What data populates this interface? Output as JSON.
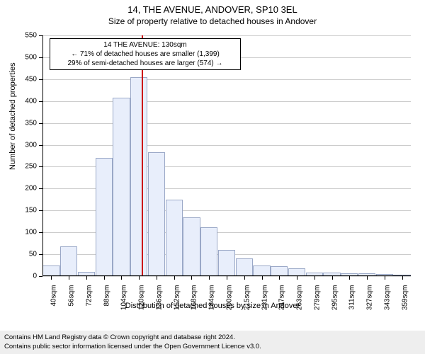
{
  "title_main": "14, THE AVENUE, ANDOVER, SP10 3EL",
  "title_sub": "Size of property relative to detached houses in Andover",
  "chart": {
    "type": "histogram",
    "y_axis_title": "Number of detached properties",
    "x_axis_title": "Distribution of detached houses by size in Andover",
    "ylim": [
      0,
      550
    ],
    "y_ticks": [
      0,
      50,
      100,
      150,
      200,
      250,
      300,
      350,
      400,
      450,
      500,
      550
    ],
    "x_ticks": [
      "40sqm",
      "56sqm",
      "72sqm",
      "88sqm",
      "104sqm",
      "120sqm",
      "136sqm",
      "152sqm",
      "168sqm",
      "184sqm",
      "200sqm",
      "215sqm",
      "231sqm",
      "247sqm",
      "263sqm",
      "279sqm",
      "295sqm",
      "311sqm",
      "327sqm",
      "343sqm",
      "359sqm"
    ],
    "bars": [
      25,
      68,
      10,
      270,
      408,
      455,
      283,
      175,
      135,
      112,
      60,
      40,
      25,
      22,
      18,
      8,
      8,
      7,
      6,
      5,
      4
    ],
    "bar_fill": "#e8eefb",
    "bar_stroke": "#9aa8c7",
    "grid_color": "#cccccc",
    "marker_color": "#cc0000",
    "marker_bin_index": 5.65,
    "annotation": {
      "line1": "14 THE AVENUE: 130sqm",
      "line2": "← 71% of detached houses are smaller (1,399)",
      "line3": "29% of semi-detached houses are larger (574) →"
    },
    "title_fontsize": 13,
    "label_fontsize": 10,
    "axis_title_fontsize": 11
  },
  "footer": {
    "line1": "Contains HM Land Registry data © Crown copyright and database right 2024.",
    "line2": "Contains public sector information licensed under the Open Government Licence v3.0.",
    "bg_color": "#eeeeee"
  }
}
